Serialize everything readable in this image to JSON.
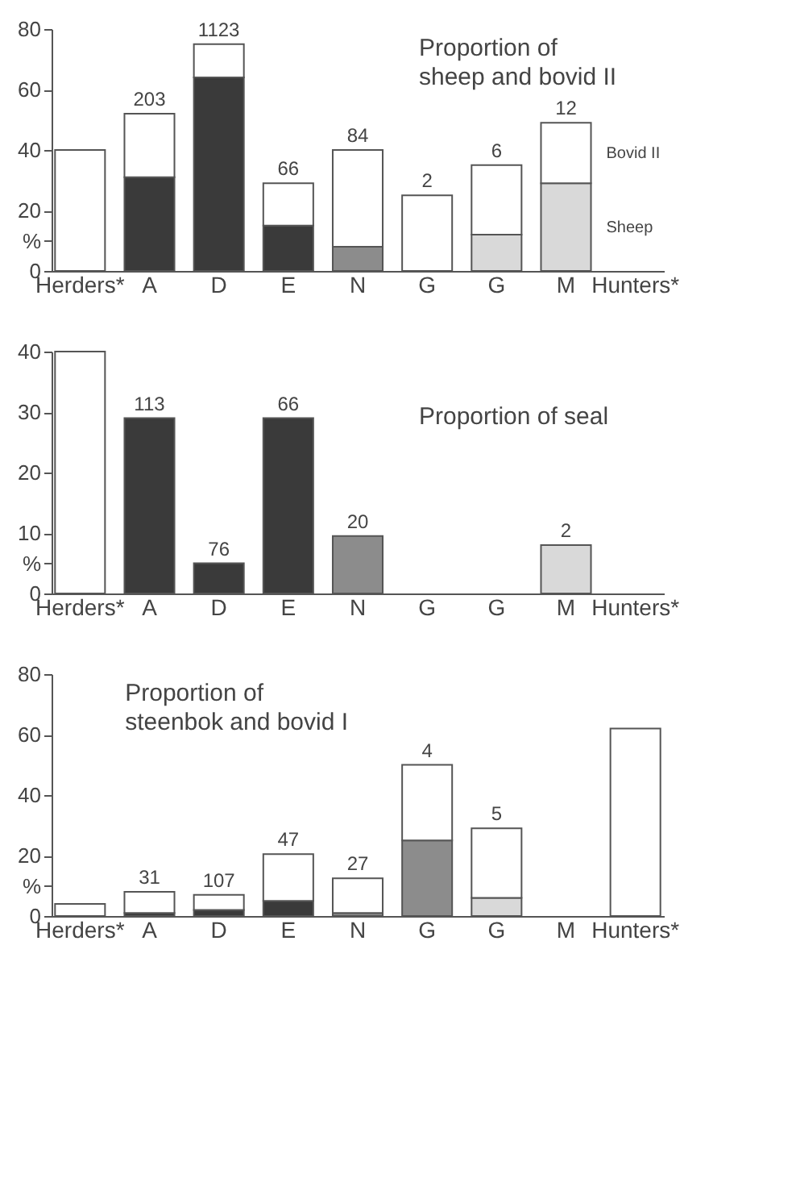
{
  "chart_data": [
    {
      "type": "bar",
      "stacked": true,
      "title": "Proportion of\nsheep and bovid II",
      "categories": [
        "Herders*",
        "A",
        "D",
        "E",
        "N",
        "G",
        "G",
        "M",
        "Hunters*"
      ],
      "ylim": [
        0,
        80
      ],
      "yticks": [
        0,
        {
          "value": 10,
          "label": "%"
        },
        20,
        40,
        60,
        80
      ],
      "grid": false,
      "annotations": [
        {
          "text": "203",
          "x": "A",
          "y": 52
        },
        {
          "text": "1123",
          "x": "D",
          "y": 75
        },
        {
          "text": "66",
          "x": "E",
          "y": 29
        },
        {
          "text": "84",
          "x": "N",
          "y": 40
        },
        {
          "text": "2",
          "x": "G",
          "y": 25
        },
        "6",
        {
          "text": "12",
          "x": "M",
          "y": 49
        }
      ],
      "series": [
        {
          "name": "Sheep",
          "colors": [
            "#ffffff",
            "#3a3a3a",
            "#3a3a3a",
            "#3a3a3a",
            "#8c8c8c",
            "#ffffff",
            "#d9d9d9",
            "#d9d9d9",
            "#ffffff"
          ],
          "values": [
            0,
            31,
            64,
            15,
            8,
            0,
            12,
            29,
            null
          ]
        },
        {
          "name": "Bovid II",
          "color": "#ffffff",
          "values": [
            40,
            21,
            11,
            14,
            32,
            25,
            23,
            20,
            null
          ]
        }
      ]
    },
    {
      "type": "bar",
      "title": "Proportion of seal",
      "categories": [
        "Herders*",
        "A",
        "D",
        "E",
        "N",
        "G",
        "G",
        "M",
        "Hunters*"
      ],
      "ylim": [
        0,
        40
      ],
      "yticks": [
        0,
        {
          "value": 5,
          "label": "%"
        },
        10,
        20,
        30,
        40
      ],
      "grid": false,
      "annotations": [
        {
          "text": "113",
          "x": "A",
          "y": 29
        },
        {
          "text": "76",
          "x": "D",
          "y": 5
        },
        {
          "text": "66",
          "x": "E",
          "y": 29
        },
        {
          "text": "20",
          "x": "N",
          "y": 9.5
        },
        {
          "text": "2",
          "x": "M",
          "y": 8
        }
      ],
      "series": [
        {
          "colors": [
            "#ffffff",
            "#3a3a3a",
            "#3a3a3a",
            "#3a3a3a",
            "#8c8c8c",
            "#ffffff",
            "#ffffff",
            "#d9d9d9",
            "#ffffff"
          ],
          "values": [
            40,
            29,
            5,
            29,
            9.5,
            null,
            null,
            8,
            null
          ]
        }
      ]
    },
    {
      "type": "bar",
      "stacked": true,
      "title": "Proportion of\nsteenbok and bovid I",
      "categories": [
        "Herders*",
        "A",
        "D",
        "E",
        "N",
        "G",
        "G",
        "M",
        "Hunters*"
      ],
      "ylim": [
        0,
        80
      ],
      "yticks": [
        0,
        {
          "value": 10,
          "label": "%"
        },
        20,
        40,
        60,
        80
      ],
      "grid": false,
      "annotations": [
        {
          "text": "31",
          "x": "A",
          "y": 8
        },
        {
          "text": "107",
          "x": "D",
          "y": 7
        },
        {
          "text": "47",
          "x": "E",
          "y": 20.5
        },
        {
          "text": "27",
          "x": "N",
          "y": 12.5
        },
        {
          "text": "4",
          "x": "G",
          "y": 50
        },
        "5"
      ],
      "series": [
        {
          "colors": [
            "#ffffff",
            "#3a3a3a",
            "#3a3a3a",
            "#3a3a3a",
            "#8c8c8c",
            "#8c8c8c",
            "#d9d9d9",
            "#ffffff",
            "#ffffff"
          ],
          "values": [
            0,
            1,
            2,
            5,
            1,
            25,
            6,
            null,
            0
          ]
        },
        {
          "color": "#ffffff",
          "values": [
            4,
            7,
            5,
            15.5,
            11.5,
            25,
            23,
            null,
            62
          ]
        }
      ]
    }
  ]
}
